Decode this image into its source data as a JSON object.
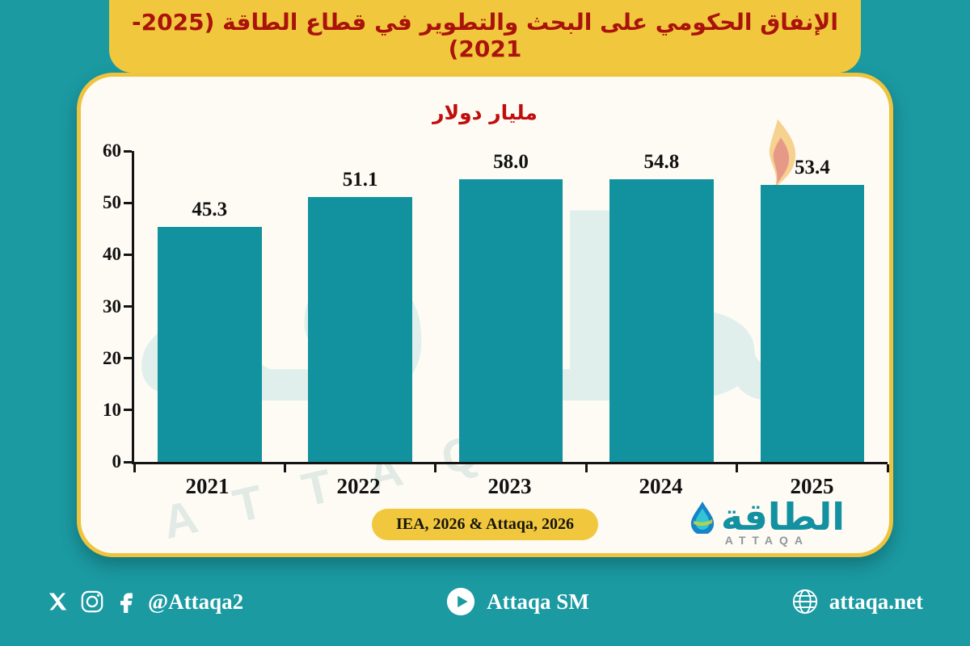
{
  "colors": {
    "background_teal": "#1b9aa2",
    "bar_teal": "#11929e",
    "accent_yellow": "#f1c73d",
    "banner_title_red": "#a9130b",
    "chart_title_red": "#c00d0d",
    "axis_black": "#141414",
    "card_cream": "#fdfbf4"
  },
  "header": {
    "title": "الإنفاق الحكومي على البحث والتطوير في قطاع الطاقة (2025-2021)"
  },
  "chart_data": {
    "type": "bar",
    "title": "مليار دولار",
    "categories": [
      "2021",
      "2022",
      "2023",
      "2024",
      "2025"
    ],
    "values": [
      45.3,
      51.1,
      58.0,
      54.8,
      53.4
    ],
    "value_labels": [
      "45.3",
      "51.1",
      "58.0",
      "54.8",
      "53.4"
    ],
    "xlabel": "",
    "ylabel": "",
    "ylim": [
      0,
      60
    ],
    "yticks": [
      0,
      10,
      20,
      30,
      40,
      50,
      60
    ],
    "grid": false,
    "legend": false,
    "bar_color": "#11929e"
  },
  "source_badge": {
    "label": "IEA, 2026 & Attaqa, 2026"
  },
  "logo": {
    "arabic": "الطاقة",
    "latin": "ATTAQA",
    "icon": "water-drop-icon"
  },
  "watermark": {
    "arabic": "الطاقة",
    "latin": "ATTAQA",
    "flame": "flame-icon"
  },
  "footer": {
    "social": {
      "icons": [
        "x-icon",
        "instagram-icon",
        "facebook-icon"
      ],
      "handle": "@Attaqa2"
    },
    "youtube": {
      "icon": "youtube-icon",
      "label": "Attaqa SM"
    },
    "website": {
      "icon": "globe-icon",
      "label": "attaqa.net"
    }
  }
}
